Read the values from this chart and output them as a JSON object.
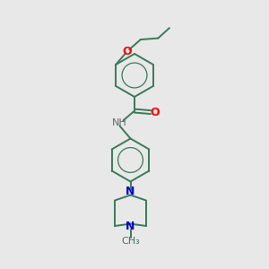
{
  "background_color": "#e8e8e8",
  "bond_color": "#3a7a5a",
  "atom_colors": {
    "O": "#ff0000",
    "N": "#0000cc",
    "H": "#666666",
    "C": "#3a7a5a"
  },
  "figsize": [
    3.0,
    3.0
  ],
  "dpi": 100,
  "xlim": [
    0,
    10
  ],
  "ylim": [
    0,
    10
  ]
}
